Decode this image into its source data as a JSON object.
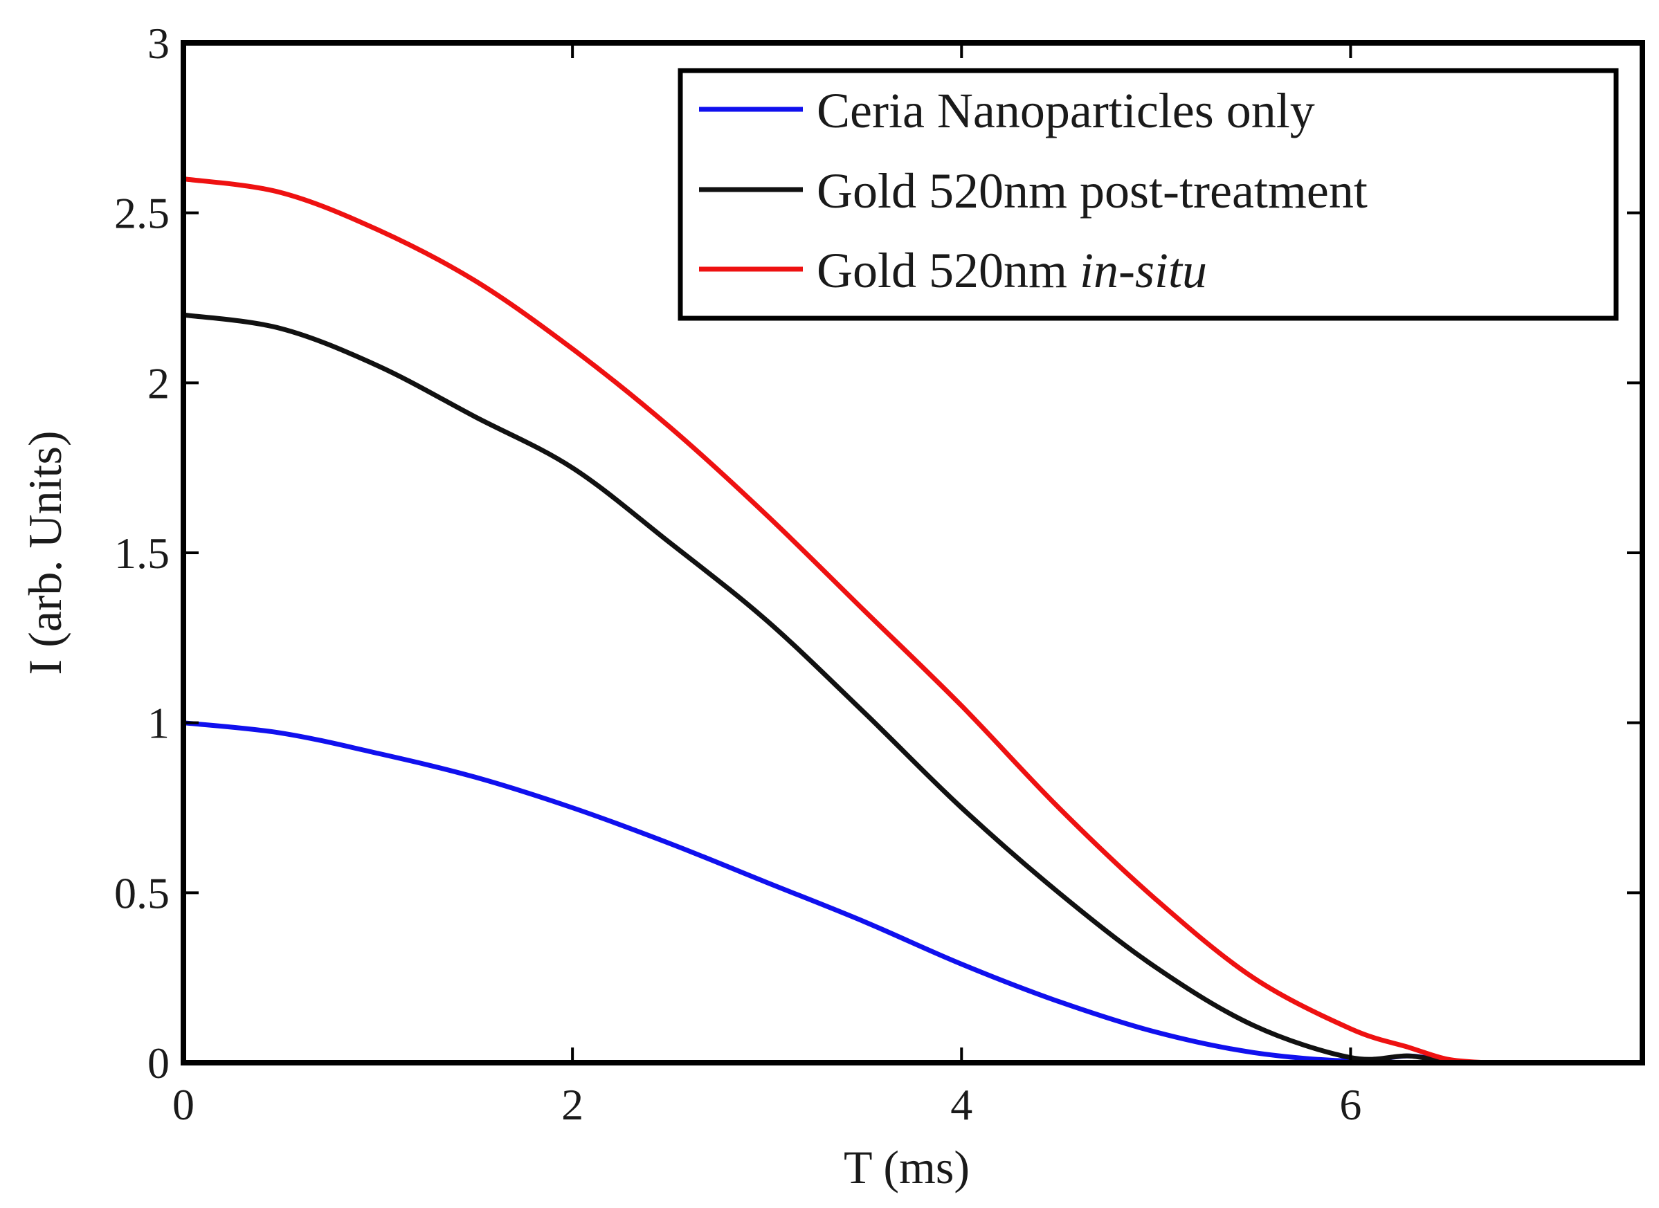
{
  "chart_data": {
    "type": "line",
    "title": "",
    "xlabel": "T (ms)",
    "ylabel": "I (arb. Units)",
    "xlim": [
      0,
      7.5
    ],
    "ylim": [
      0,
      3
    ],
    "xticks": [
      0,
      2,
      4,
      6
    ],
    "xtick_labels": [
      "0",
      "2",
      "4",
      "6"
    ],
    "yticks": [
      0,
      0.5,
      1,
      1.5,
      2,
      2.5,
      3
    ],
    "ytick_labels": [
      "0",
      "0.5",
      "1",
      "1.5",
      "2",
      "2.5",
      "3"
    ],
    "grid": false,
    "legend_position": "top-right",
    "series": [
      {
        "name": "Ceria Nanoparticles only",
        "legend_text": "Ceria Nanoparticles only",
        "legend_italic": "",
        "color": "#1010ee",
        "x": [
          0,
          0.5,
          1,
          1.5,
          2,
          2.5,
          3,
          3.5,
          4,
          4.5,
          5,
          5.5,
          6,
          6.3,
          6.5
        ],
        "y": [
          1.0,
          0.97,
          0.91,
          0.84,
          0.75,
          0.645,
          0.53,
          0.415,
          0.29,
          0.18,
          0.09,
          0.03,
          0.005,
          0.02,
          0.0
        ]
      },
      {
        "name": "Gold 520nm post-treatment",
        "legend_text": "Gold 520nm post-treatment",
        "legend_italic": "",
        "color": "#111111",
        "x": [
          0,
          0.5,
          1,
          1.5,
          2,
          2.5,
          3,
          3.5,
          4,
          4.5,
          5,
          5.5,
          6,
          6.3,
          6.5
        ],
        "y": [
          2.2,
          2.16,
          2.05,
          1.9,
          1.75,
          1.53,
          1.3,
          1.03,
          0.75,
          0.5,
          0.28,
          0.11,
          0.015,
          0.02,
          0.0
        ]
      },
      {
        "name": "Gold 520nm in-situ",
        "legend_text": "Gold 520nm ",
        "legend_italic": "in-situ",
        "color": "#ee1111",
        "x": [
          0,
          0.5,
          1,
          1.5,
          2,
          2.5,
          3,
          3.5,
          4,
          4.5,
          5,
          5.5,
          6,
          6.3,
          6.5,
          6.7
        ],
        "y": [
          2.6,
          2.56,
          2.45,
          2.3,
          2.1,
          1.87,
          1.61,
          1.33,
          1.05,
          0.75,
          0.48,
          0.25,
          0.1,
          0.045,
          0.01,
          0.0
        ]
      }
    ]
  }
}
